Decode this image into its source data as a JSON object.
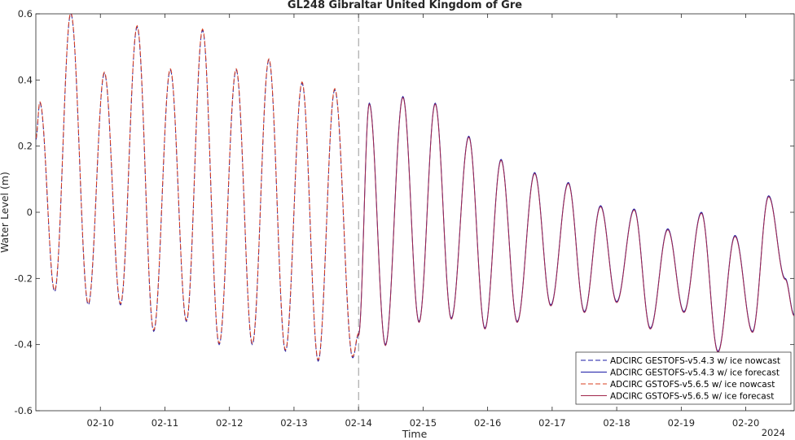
{
  "chart_data": {
    "type": "line",
    "title": "GL248 Gibraltar United Kingdom of Gre",
    "xlabel": "Time",
    "ylabel": "Water Level (m)",
    "year_label": "2024",
    "xlim": [
      "2024-02-09T00:00",
      "2024-02-20T18:00"
    ],
    "ylim": [
      -0.6,
      0.6
    ],
    "yticks": [
      -0.6,
      -0.4,
      -0.2,
      0,
      0.2,
      0.4,
      0.6
    ],
    "ytick_labels": [
      "-0.6",
      "-0.4",
      "-0.2",
      "0",
      "0.2",
      "0.4",
      "0.6"
    ],
    "xticks": [
      "2024-02-10",
      "2024-02-11",
      "2024-02-12",
      "2024-02-13",
      "2024-02-14",
      "2024-02-15",
      "2024-02-16",
      "2024-02-17",
      "2024-02-18",
      "2024-02-19",
      "2024-02-20"
    ],
    "xtick_labels": [
      "02-10",
      "02-11",
      "02-12",
      "02-13",
      "02-14",
      "02-15",
      "02-16",
      "02-17",
      "02-18",
      "02-19",
      "02-20"
    ],
    "forecast_start": "2024-02-14T00:00",
    "grid": false,
    "legend_position": "bottom-right",
    "extrema_nowcast": [
      {
        "t": "2024-02-09T00:00",
        "y": 0.22
      },
      {
        "t": "2024-02-09T01:30",
        "y": 0.33
      },
      {
        "t": "2024-02-09T07:00",
        "y": -0.24
      },
      {
        "t": "2024-02-09T13:00",
        "y": 0.6
      },
      {
        "t": "2024-02-09T19:30",
        "y": -0.28
      },
      {
        "t": "2024-02-10T01:30",
        "y": 0.42
      },
      {
        "t": "2024-02-10T07:30",
        "y": -0.28
      },
      {
        "t": "2024-02-10T13:40",
        "y": 0.56
      },
      {
        "t": "2024-02-10T19:50",
        "y": -0.36
      },
      {
        "t": "2024-02-11T02:00",
        "y": 0.43
      },
      {
        "t": "2024-02-11T08:00",
        "y": -0.33
      },
      {
        "t": "2024-02-11T14:00",
        "y": 0.55
      },
      {
        "t": "2024-02-11T20:10",
        "y": -0.4
      },
      {
        "t": "2024-02-12T02:30",
        "y": 0.43
      },
      {
        "t": "2024-02-12T08:30",
        "y": -0.4
      },
      {
        "t": "2024-02-12T14:40",
        "y": 0.46
      },
      {
        "t": "2024-02-12T20:50",
        "y": -0.42
      },
      {
        "t": "2024-02-13T03:00",
        "y": 0.39
      },
      {
        "t": "2024-02-13T09:00",
        "y": -0.45
      },
      {
        "t": "2024-02-13T15:10",
        "y": 0.37
      },
      {
        "t": "2024-02-13T21:50",
        "y": -0.44
      },
      {
        "t": "2024-02-14T00:00",
        "y": -0.37
      }
    ],
    "extrema_forecast": [
      {
        "t": "2024-02-14T00:00",
        "y": -0.37
      },
      {
        "t": "2024-02-14T04:00",
        "y": 0.33
      },
      {
        "t": "2024-02-14T10:00",
        "y": -0.4
      },
      {
        "t": "2024-02-14T16:30",
        "y": 0.35
      },
      {
        "t": "2024-02-14T22:30",
        "y": -0.33
      },
      {
        "t": "2024-02-15T04:30",
        "y": 0.33
      },
      {
        "t": "2024-02-15T10:30",
        "y": -0.32
      },
      {
        "t": "2024-02-15T17:00",
        "y": 0.23
      },
      {
        "t": "2024-02-15T23:00",
        "y": -0.35
      },
      {
        "t": "2024-02-16T05:00",
        "y": 0.16
      },
      {
        "t": "2024-02-16T11:00",
        "y": -0.33
      },
      {
        "t": "2024-02-16T17:30",
        "y": 0.12
      },
      {
        "t": "2024-02-16T23:30",
        "y": -0.28
      },
      {
        "t": "2024-02-17T06:00",
        "y": 0.09
      },
      {
        "t": "2024-02-17T12:00",
        "y": -0.3
      },
      {
        "t": "2024-02-17T18:00",
        "y": 0.02
      },
      {
        "t": "2024-02-18T00:00",
        "y": -0.27
      },
      {
        "t": "2024-02-18T06:30",
        "y": 0.01
      },
      {
        "t": "2024-02-18T12:30",
        "y": -0.35
      },
      {
        "t": "2024-02-18T19:00",
        "y": -0.05
      },
      {
        "t": "2024-02-19T01:00",
        "y": -0.3
      },
      {
        "t": "2024-02-19T07:30",
        "y": 0.0
      },
      {
        "t": "2024-02-19T13:40",
        "y": -0.42
      },
      {
        "t": "2024-02-19T20:00",
        "y": -0.07
      },
      {
        "t": "2024-02-20T02:30",
        "y": -0.36
      },
      {
        "t": "2024-02-20T08:30",
        "y": 0.05
      },
      {
        "t": "2024-02-20T14:40",
        "y": -0.2
      },
      {
        "t": "2024-02-20T18:00",
        "y": -0.31
      }
    ],
    "series": [
      {
        "name": "ADCIRC GESTOFS-v5.4.3 w/ ice nowcast",
        "color": "#1a1aa6",
        "dash": "dashed",
        "source": "nowcast",
        "offset": 0.0
      },
      {
        "name": "ADCIRC GESTOFS-v5.4.3 w/ ice forecast",
        "color": "#1a1aa6",
        "dash": "solid",
        "source": "forecast",
        "offset": 0.0
      },
      {
        "name": "ADCIRC GSTOFS-v5.6.5 w/ ice nowcast",
        "color": "#d93f1f",
        "dash": "dashed",
        "source": "nowcast",
        "offset": 0.004
      },
      {
        "name": "ADCIRC GSTOFS-v5.6.5 w/ ice forecast",
        "color": "#a0264b",
        "dash": "solid",
        "source": "forecast",
        "offset": -0.003
      }
    ]
  }
}
